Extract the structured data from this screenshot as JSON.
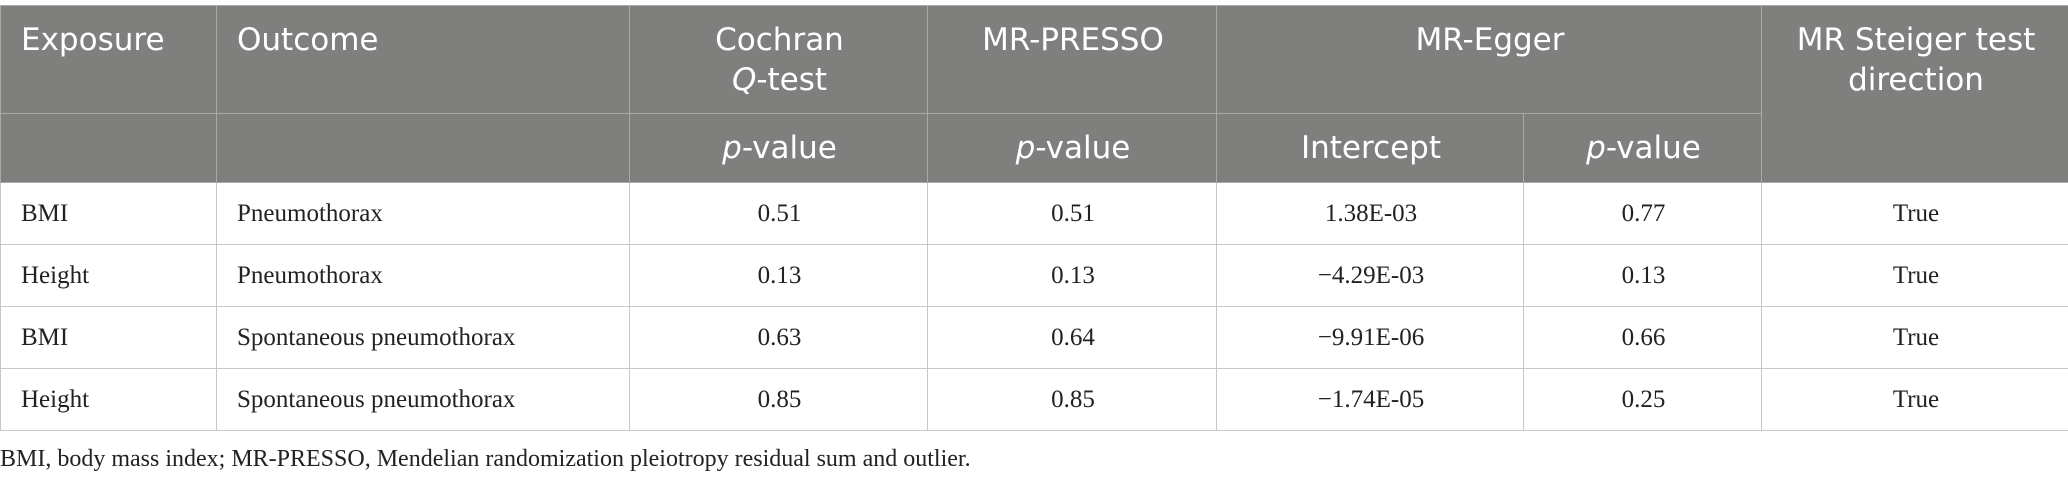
{
  "header": {
    "row1": [
      "Exposure",
      "Outcome",
      {
        "parts": [
          "Cochran",
          "Q",
          "-test"
        ]
      },
      "MR-PRESSO",
      "MR-Egger",
      "MR Steiger test direction"
    ],
    "row2": [
      {
        "parts": [
          "p",
          "-value"
        ]
      },
      {
        "parts": [
          "p",
          "-value"
        ]
      },
      "Intercept",
      {
        "parts": [
          "p",
          "-value"
        ]
      }
    ]
  },
  "table": {
    "rows": [
      [
        "BMI",
        "Pneumothorax",
        "0.51",
        "0.51",
        "1.38E-03",
        "0.77",
        "True"
      ],
      [
        "Height",
        "Pneumothorax",
        "0.13",
        "0.13",
        "−4.29E-03",
        "0.13",
        "True"
      ],
      [
        "BMI",
        "Spontaneous pneumothorax",
        "0.63",
        "0.64",
        "−9.91E-06",
        "0.66",
        "True"
      ],
      [
        "Height",
        "Spontaneous pneumothorax",
        "0.85",
        "0.85",
        "−1.74E-05",
        "0.25",
        "True"
      ]
    ]
  },
  "footnote": "BMI, body mass index; MR-PRESSO, Mendelian randomization pleiotropy residual sum and outlier."
}
